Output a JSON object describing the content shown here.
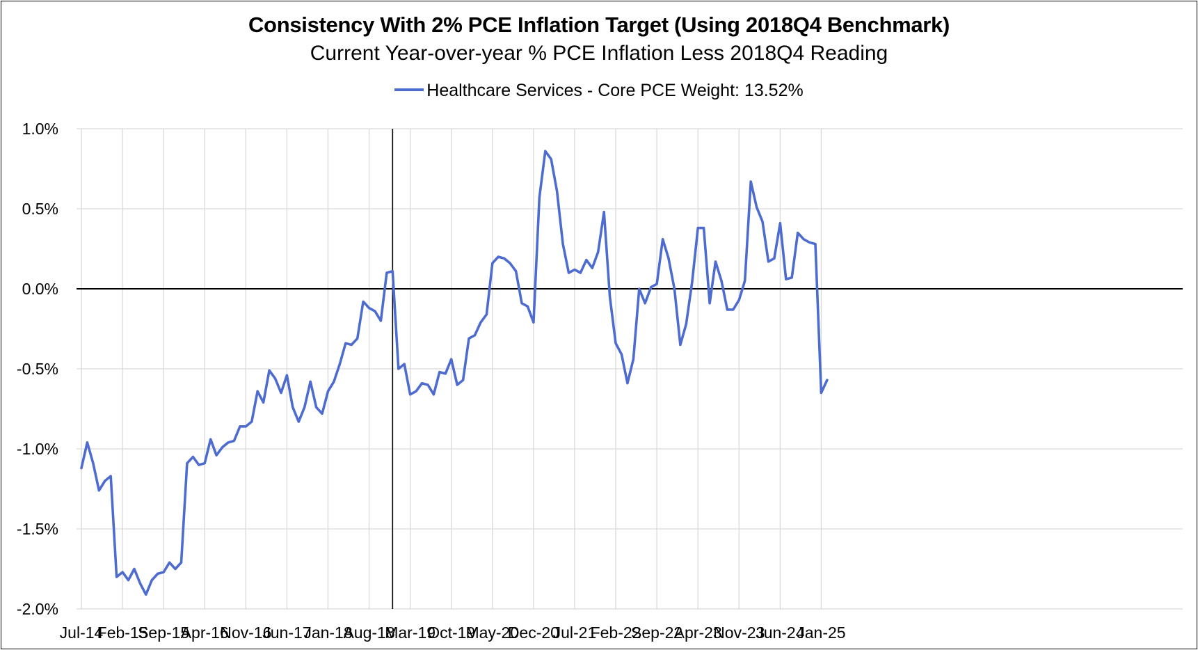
{
  "chart_data": {
    "type": "line",
    "title": "Consistency With 2% PCE Inflation Target (Using 2018Q4 Benchmark)",
    "subtitle": "Current Year-over-year % PCE Inflation Less 2018Q4 Reading",
    "legend": "top-center",
    "ylim": [
      -2.0,
      1.0
    ],
    "yticks": [
      1.0,
      0.5,
      0.0,
      -0.5,
      -1.0,
      -1.5,
      -2.0
    ],
    "ytick_labels": [
      "1.0%",
      "0.5%",
      "0.0%",
      "-0.5%",
      "-1.0%",
      "-1.5%",
      "-2.0%"
    ],
    "xtick_labels": [
      "Jul-14",
      "Feb-15",
      "Sep-15",
      "Apr-16",
      "Nov-16",
      "Jun-17",
      "Jan-18",
      "Aug-18",
      "Mar-19",
      "Oct-19",
      "May-20",
      "Dec-20",
      "Jul-21",
      "Feb-22",
      "Sep-22",
      "Apr-23",
      "Nov-23",
      "Jun-24",
      "Jan-25"
    ],
    "x_start": "Jul-14",
    "benchmark_line": "Dec-18",
    "series": [
      {
        "name": "Healthcare Services - Core PCE Weight: 13.52%",
        "color": "#4e6bd0",
        "values": [
          -1.12,
          -0.96,
          -1.09,
          -1.26,
          -1.2,
          -1.17,
          -1.8,
          -1.77,
          -1.82,
          -1.75,
          -1.84,
          -1.91,
          -1.82,
          -1.78,
          -1.77,
          -1.71,
          -1.75,
          -1.71,
          -1.09,
          -1.05,
          -1.1,
          -1.09,
          -0.94,
          -1.04,
          -0.99,
          -0.96,
          -0.95,
          -0.86,
          -0.86,
          -0.83,
          -0.64,
          -0.71,
          -0.51,
          -0.56,
          -0.65,
          -0.54,
          -0.74,
          -0.83,
          -0.74,
          -0.58,
          -0.74,
          -0.78,
          -0.64,
          -0.58,
          -0.47,
          -0.34,
          -0.35,
          -0.31,
          -0.08,
          -0.12,
          -0.14,
          -0.2,
          0.1,
          0.11,
          -0.5,
          -0.47,
          -0.66,
          -0.64,
          -0.59,
          -0.6,
          -0.66,
          -0.52,
          -0.53,
          -0.44,
          -0.6,
          -0.57,
          -0.31,
          -0.29,
          -0.21,
          -0.16,
          0.16,
          0.2,
          0.19,
          0.16,
          0.11,
          -0.09,
          -0.11,
          -0.21,
          0.57,
          0.86,
          0.81,
          0.61,
          0.28,
          0.1,
          0.12,
          0.1,
          0.18,
          0.13,
          0.23,
          0.48,
          -0.05,
          -0.34,
          -0.41,
          -0.59,
          -0.44,
          0.0,
          -0.09,
          0.01,
          0.03,
          0.31,
          0.19,
          0.0,
          -0.35,
          -0.22,
          0.04,
          0.38,
          0.38,
          -0.09,
          0.17,
          0.05,
          -0.13,
          -0.13,
          -0.07,
          0.05,
          0.67,
          0.51,
          0.42,
          0.17,
          0.19,
          0.41,
          0.06,
          0.07,
          0.35,
          0.31,
          0.29,
          0.28,
          -0.65,
          -0.57
        ]
      }
    ]
  }
}
